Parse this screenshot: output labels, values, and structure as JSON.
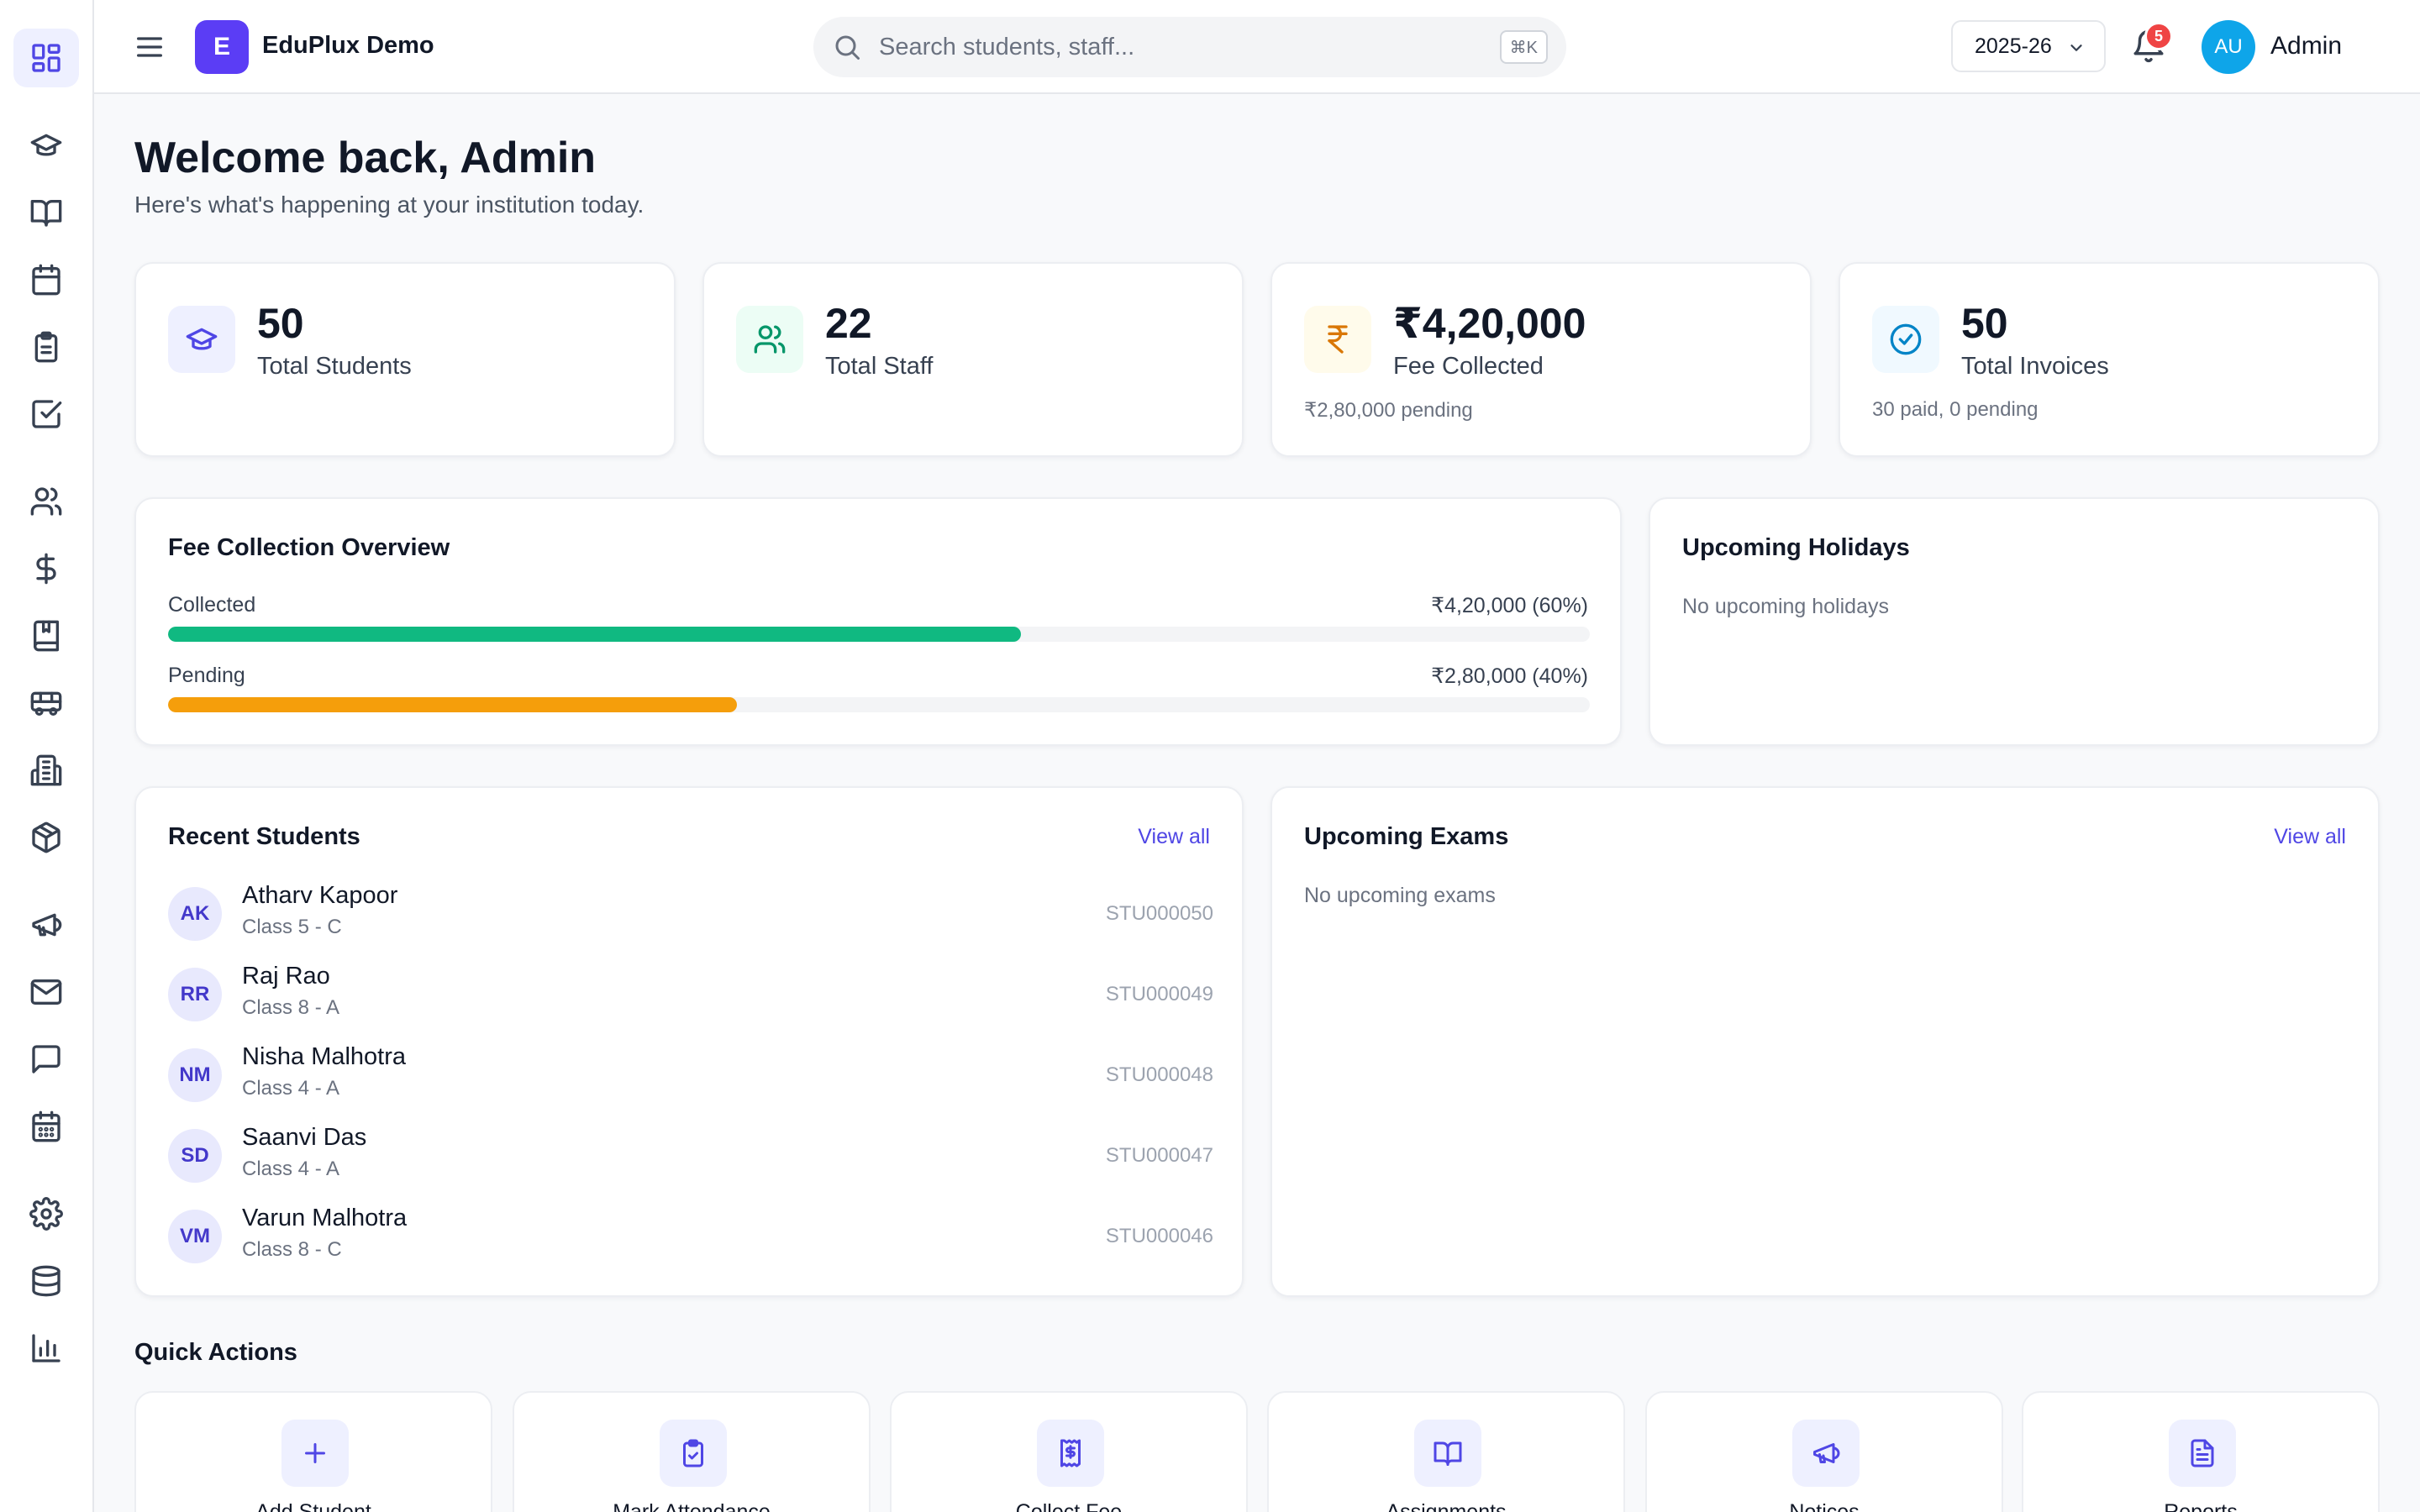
{
  "header": {
    "app_name": "EduPlux Demo",
    "logo_letter": "E",
    "search_placeholder": "Search students, staff...",
    "search_shortcut": "⌘K",
    "academic_year": "2025-26",
    "notification_count": "5",
    "user_initials": "AU",
    "user_name": "Admin"
  },
  "sidebar": {
    "items": [
      {
        "icon": "dashboard-icon",
        "active": true
      },
      {
        "icon": "graduation-cap-icon"
      },
      {
        "icon": "book-open-icon"
      },
      {
        "icon": "calendar-icon"
      },
      {
        "icon": "clipboard-icon"
      },
      {
        "icon": "check-square-icon"
      },
      {
        "icon": "users-icon"
      },
      {
        "icon": "dollar-icon"
      },
      {
        "icon": "library-icon"
      },
      {
        "icon": "bus-icon"
      },
      {
        "icon": "building-icon"
      },
      {
        "icon": "package-icon"
      },
      {
        "icon": "megaphone-icon"
      },
      {
        "icon": "mail-icon"
      },
      {
        "icon": "message-icon"
      },
      {
        "icon": "calendar-days-icon"
      },
      {
        "icon": "settings-icon"
      },
      {
        "icon": "database-icon"
      },
      {
        "icon": "bar-chart-icon"
      }
    ]
  },
  "welcome": {
    "title": "Welcome back, Admin",
    "subtitle": "Here's what's happening at your institution today."
  },
  "stats": [
    {
      "value": "50",
      "label": "Total Students",
      "note": "",
      "icon": "graduation-cap-icon",
      "color": "#4f46e5",
      "bg": "#eef0ff"
    },
    {
      "value": "22",
      "label": "Total Staff",
      "note": "",
      "icon": "users-icon",
      "color": "#059669",
      "bg": "#ecfdf5"
    },
    {
      "value": "₹4,20,000",
      "label": "Fee Collected",
      "note": "₹2,80,000 pending",
      "icon": "rupee-icon",
      "color": "#d97706",
      "bg": "#fffbeb"
    },
    {
      "value": "50",
      "label": "Total Invoices",
      "note": "30 paid, 0 pending",
      "icon": "check-circle-icon",
      "color": "#0284c7",
      "bg": "#f0f9ff"
    }
  ],
  "fee_overview": {
    "title": "Fee Collection Overview",
    "collected_label": "Collected",
    "collected_value": "₹4,20,000 (60%)",
    "collected_fraction": 0.6,
    "collected_color": "#10b981",
    "pending_label": "Pending",
    "pending_value": "₹2,80,000 (40%)",
    "pending_fraction": 0.4,
    "pending_color": "#f59e0b"
  },
  "holidays": {
    "title": "Upcoming Holidays",
    "empty": "No upcoming holidays"
  },
  "recent_students": {
    "title": "Recent Students",
    "view_all": "View all",
    "items": [
      {
        "initials": "AK",
        "name": "Atharv Kapoor",
        "class": "Class 5 - C",
        "id": "STU000050"
      },
      {
        "initials": "RR",
        "name": "Raj Rao",
        "class": "Class 8 - A",
        "id": "STU000049"
      },
      {
        "initials": "NM",
        "name": "Nisha Malhotra",
        "class": "Class 4 - A",
        "id": "STU000048"
      },
      {
        "initials": "SD",
        "name": "Saanvi Das",
        "class": "Class 4 - A",
        "id": "STU000047"
      },
      {
        "initials": "VM",
        "name": "Varun Malhotra",
        "class": "Class 8 - C",
        "id": "STU000046"
      }
    ]
  },
  "exams": {
    "title": "Upcoming Exams",
    "view_all": "View all",
    "empty": "No upcoming exams"
  },
  "quick_actions": {
    "title": "Quick Actions",
    "items": [
      {
        "label": "Add Student",
        "icon": "plus-icon"
      },
      {
        "label": "Mark Attendance",
        "icon": "clipboard-check-icon"
      },
      {
        "label": "Collect Fee",
        "icon": "receipt-icon"
      },
      {
        "label": "Assignments",
        "icon": "book-open-icon"
      },
      {
        "label": "Notices",
        "icon": "megaphone-icon"
      },
      {
        "label": "Reports",
        "icon": "file-text-icon"
      }
    ]
  }
}
